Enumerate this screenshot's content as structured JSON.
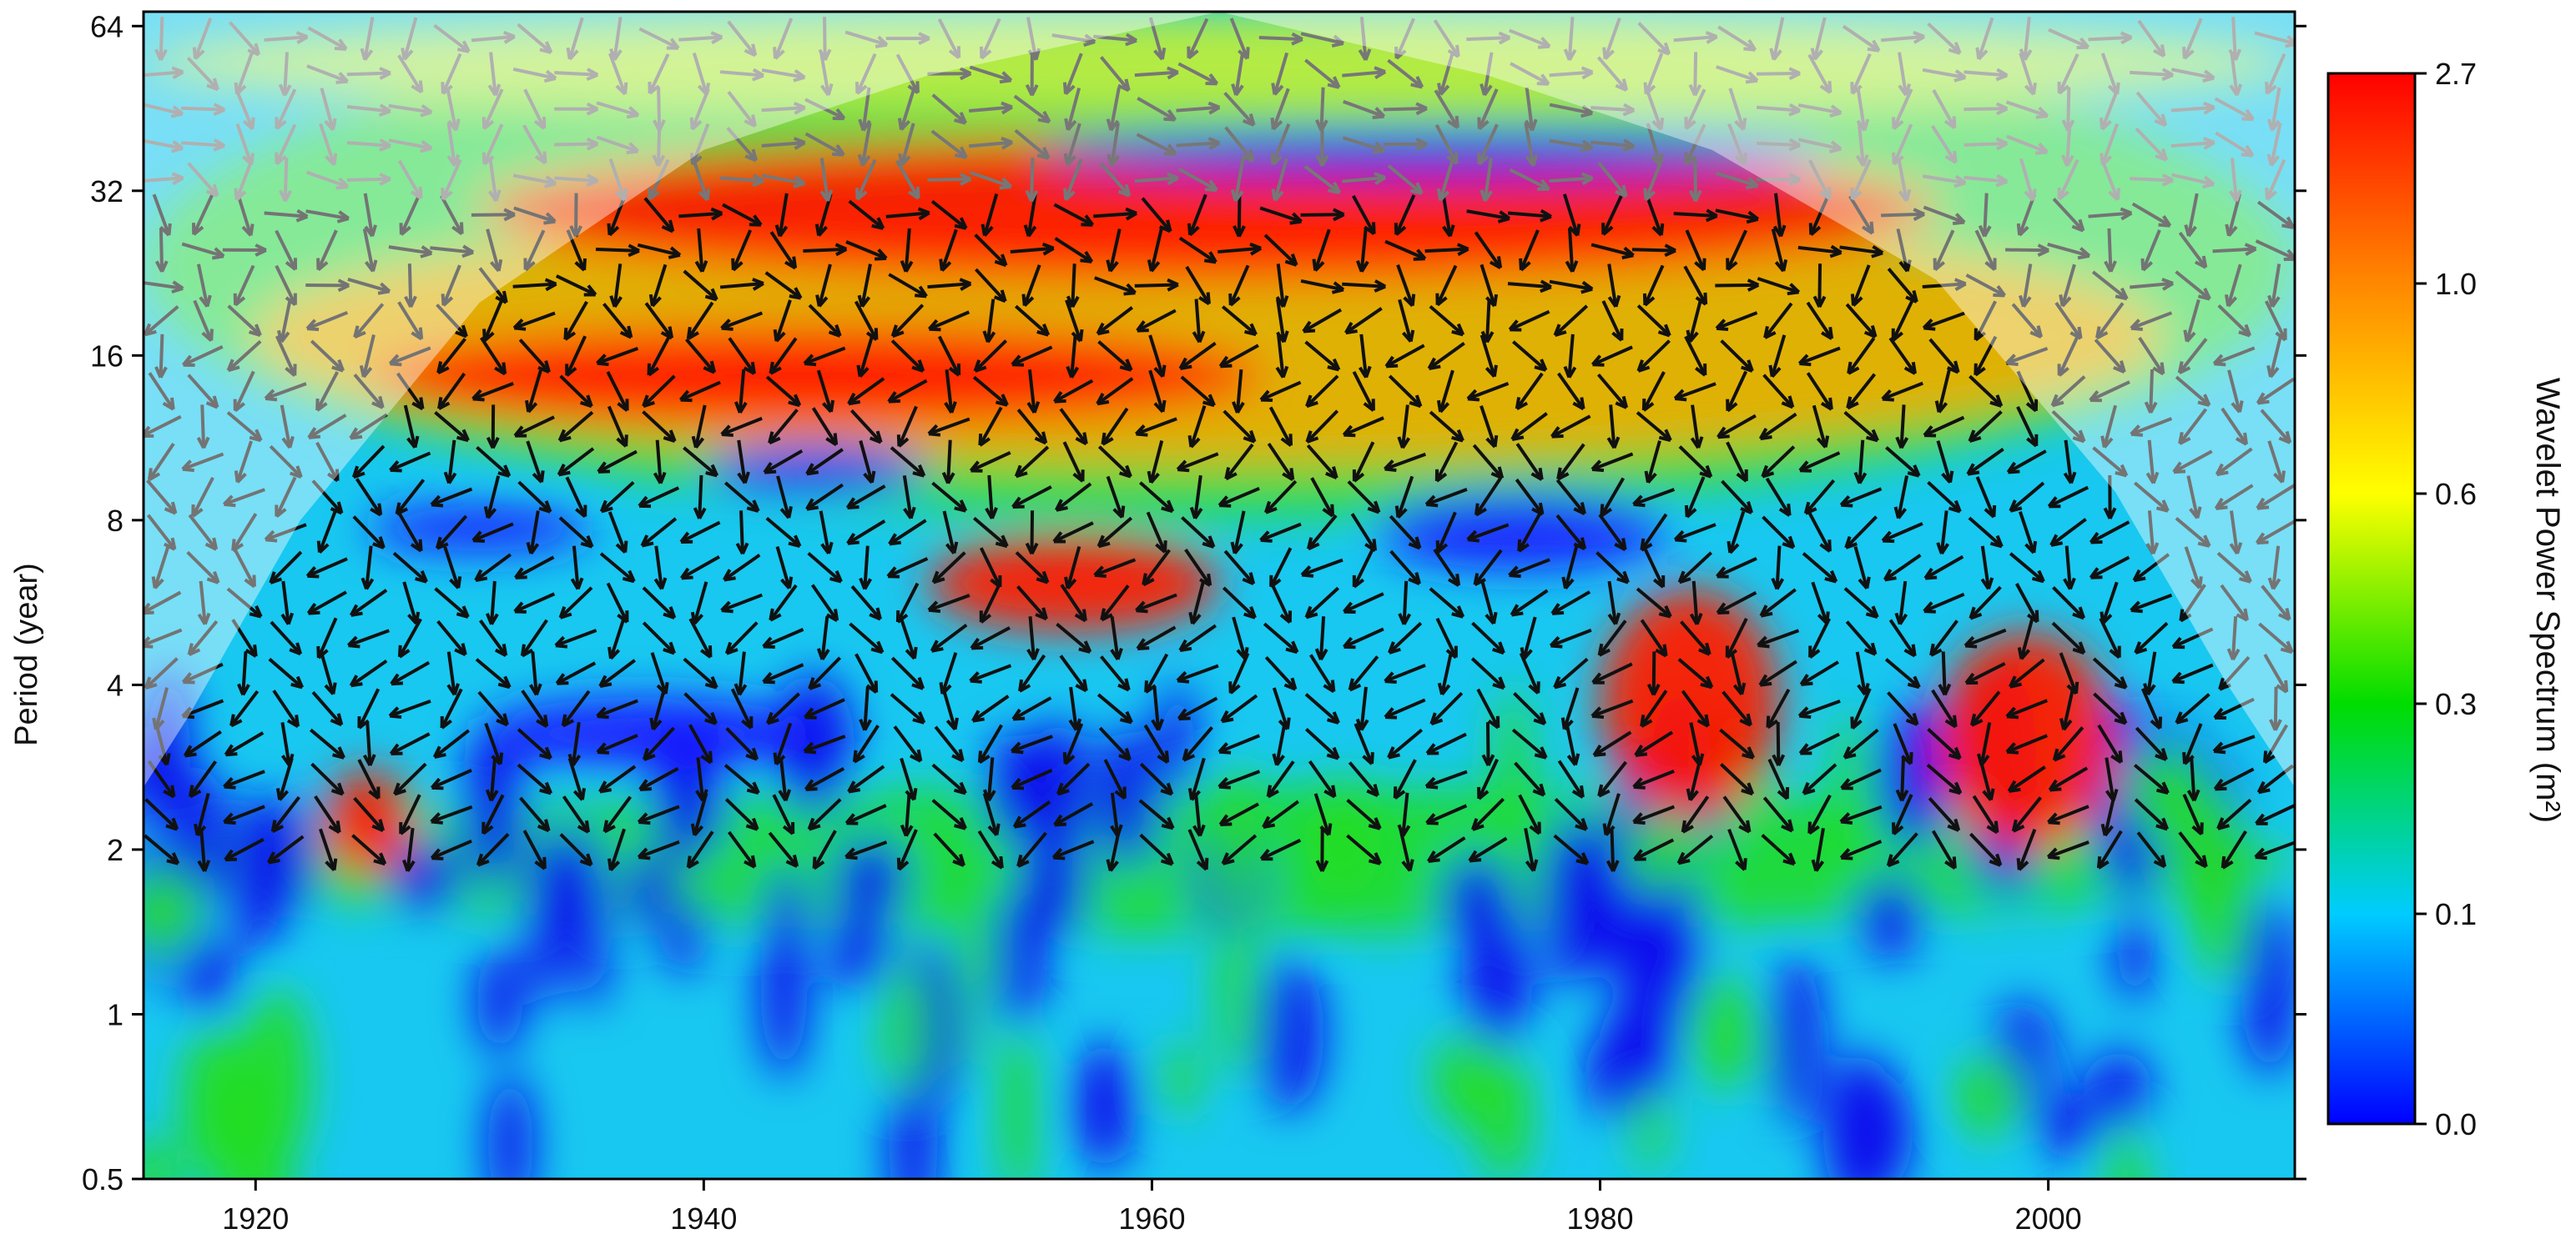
{
  "chart_data": {
    "type": "heatmap",
    "title": "",
    "xlabel": "",
    "ylabel": "Period (year)",
    "x_range": [
      1915,
      2011
    ],
    "y_scale": "log2",
    "y_range": [
      0.5,
      68
    ],
    "x_ticks": [
      1920,
      1940,
      1960,
      1980,
      2000
    ],
    "y_ticks": [
      0.5,
      1,
      2,
      4,
      8,
      16,
      32,
      64
    ],
    "y_tick_labels": [
      "0.5",
      "1",
      "2",
      "4",
      "8",
      "16",
      "32",
      "64"
    ],
    "colorbar": {
      "label": "Wavelet Power Spectrum (m²)",
      "ticks": [
        "0.0",
        "0.1",
        "0.3",
        "0.6",
        "1.0",
        "2.7"
      ],
      "colors": [
        "#0000ff",
        "#00ccff",
        "#00dd00",
        "#ffff00",
        "#ff8800",
        "#ff0000"
      ]
    },
    "cone_of_influence": {
      "x": [
        1915,
        1917,
        1922,
        1930,
        1940,
        1950,
        1963,
        1975,
        1985,
        1995,
        2003,
        2008,
        2011
      ],
      "y": [
        2.6,
        3.5,
        8,
        20,
        38,
        52,
        68,
        52,
        38,
        22,
        9,
        4,
        2.6
      ]
    },
    "high_power_regions": [
      {
        "x": [
          1930,
          1995
        ],
        "y": [
          22,
          40
        ],
        "level": "high"
      },
      {
        "x": [
          1925,
          1965
        ],
        "y": [
          12,
          18
        ],
        "level": "high"
      },
      {
        "x": [
          1950,
          1963
        ],
        "y": [
          5,
          7.5
        ],
        "level": "high"
      },
      {
        "x": [
          1980,
          1988
        ],
        "y": [
          2.3,
          6
        ],
        "level": "high"
      },
      {
        "x": [
          1995,
          2003
        ],
        "y": [
          2,
          5
        ],
        "level": "high"
      },
      {
        "x": [
          1923,
          1927
        ],
        "y": [
          1.8,
          2.8
        ],
        "level": "high"
      }
    ],
    "low_power_regions": [
      {
        "x": [
          1955,
          1990
        ],
        "y": [
          34,
          41
        ],
        "level": "low"
      },
      {
        "x": [
          1925,
          1935
        ],
        "y": [
          7,
          8.5
        ],
        "level": "low"
      },
      {
        "x": [
          1940,
          1950
        ],
        "y": [
          9,
          11
        ],
        "level": "low"
      },
      {
        "x": [
          1970,
          1983
        ],
        "y": [
          6.5,
          9
        ],
        "level": "low"
      },
      {
        "x": [
          1930,
          1945
        ],
        "y": [
          2.8,
          3.8
        ],
        "level": "low"
      }
    ]
  }
}
